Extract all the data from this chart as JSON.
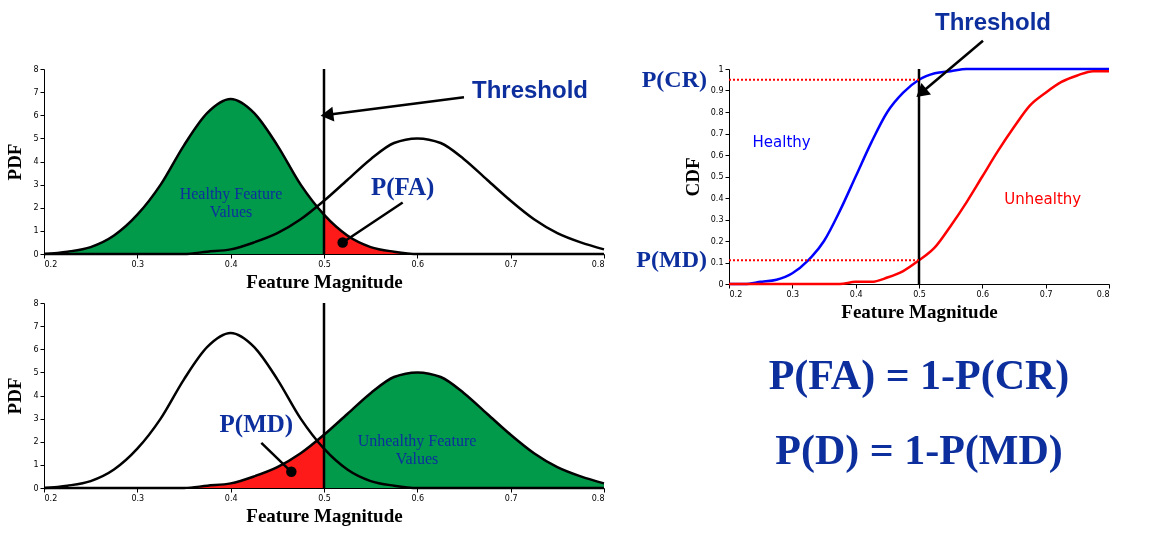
{
  "chart_data": [
    {
      "type": "area",
      "x": [
        0.2,
        0.225,
        0.25,
        0.275,
        0.3,
        0.325,
        0.35,
        0.375,
        0.4,
        0.425,
        0.45,
        0.475,
        0.5,
        0.525,
        0.55,
        0.575,
        0.6,
        0.625,
        0.65,
        0.675,
        0.7,
        0.725,
        0.75,
        0.775,
        0.8
      ],
      "xlim": [
        0.2,
        0.8
      ],
      "xticks": [
        0.2,
        0.3,
        0.4,
        0.5,
        0.6,
        0.7,
        0.8
      ],
      "ylim": [
        0,
        8
      ],
      "yticks": [
        0,
        1,
        2,
        3,
        4,
        5,
        6,
        7,
        8
      ],
      "xlabel": "Feature Magnitude",
      "ylabel": "PDF",
      "series": [
        {
          "type": "area",
          "color": "#009a4a",
          "values": [
            0.0,
            0.1,
            0.3,
            0.8,
            1.7,
            3.0,
            4.7,
            6.1,
            6.7,
            6.1,
            4.7,
            3.0,
            1.7,
            null,
            null,
            null,
            null,
            null,
            null,
            null,
            null,
            null,
            null,
            null,
            null
          ]
        },
        {
          "type": "area",
          "color": "#ff1a1a",
          "values": [
            null,
            null,
            null,
            null,
            null,
            null,
            null,
            null,
            null,
            null,
            null,
            null,
            1.7,
            0.8,
            0.3,
            0.1,
            0.0,
            0.0,
            0.0,
            0.0,
            0.0,
            0.0,
            0.0,
            0.0,
            0.0
          ]
        },
        {
          "type": "line",
          "color": "#000000",
          "values": [
            0.0,
            0.1,
            0.3,
            0.8,
            1.7,
            3.0,
            4.7,
            6.1,
            6.7,
            6.1,
            4.7,
            3.0,
            1.7,
            0.8,
            0.3,
            0.1,
            0.0,
            0.0,
            0.0,
            0.0,
            0.0,
            0.0,
            0.0,
            0.0,
            0.0
          ]
        },
        {
          "type": "line",
          "color": "#000000",
          "values": [
            0.0,
            0.0,
            0.0,
            0.0,
            0.0,
            0.0,
            0.0,
            0.1,
            0.2,
            0.5,
            0.9,
            1.5,
            2.3,
            3.2,
            4.1,
            4.8,
            5.0,
            4.8,
            4.1,
            3.2,
            2.3,
            1.5,
            0.9,
            0.5,
            0.2
          ]
        }
      ],
      "ref_lines": [
        {
          "axis": "x",
          "value": 0.5,
          "color": "#000000"
        }
      ],
      "annotations": [
        "Healthy Feature\nValues",
        {
          "text": "P(FA)",
          "x": 0.52,
          "y": 0.5
        },
        {
          "text": "Threshold",
          "x": 0.5,
          "y": 6
        }
      ]
    },
    {
      "type": "area",
      "x": [
        0.2,
        0.225,
        0.25,
        0.275,
        0.3,
        0.325,
        0.35,
        0.375,
        0.4,
        0.425,
        0.45,
        0.475,
        0.5,
        0.525,
        0.55,
        0.575,
        0.6,
        0.625,
        0.65,
        0.675,
        0.7,
        0.725,
        0.75,
        0.775,
        0.8
      ],
      "xlim": [
        0.2,
        0.8
      ],
      "xticks": [
        0.2,
        0.3,
        0.4,
        0.5,
        0.6,
        0.7,
        0.8
      ],
      "ylim": [
        0,
        8
      ],
      "yticks": [
        0,
        1,
        2,
        3,
        4,
        5,
        6,
        7,
        8
      ],
      "xlabel": "Feature Magnitude",
      "ylabel": "PDF",
      "series": [
        {
          "type": "area",
          "color": "#ff1a1a",
          "values": [
            0.0,
            0.0,
            0.0,
            0.0,
            0.0,
            0.0,
            0.0,
            0.1,
            0.2,
            0.5,
            0.9,
            1.5,
            2.3,
            null,
            null,
            null,
            null,
            null,
            null,
            null,
            null,
            null,
            null,
            null,
            null
          ]
        },
        {
          "type": "area",
          "color": "#009a4a",
          "values": [
            null,
            null,
            null,
            null,
            null,
            null,
            null,
            null,
            null,
            null,
            null,
            null,
            2.3,
            3.2,
            4.1,
            4.8,
            5.0,
            4.8,
            4.1,
            3.2,
            2.3,
            1.5,
            0.9,
            0.5,
            0.2
          ]
        },
        {
          "type": "line",
          "color": "#000000",
          "values": [
            0.0,
            0.1,
            0.3,
            0.8,
            1.7,
            3.0,
            4.7,
            6.1,
            6.7,
            6.1,
            4.7,
            3.0,
            1.7,
            0.8,
            0.3,
            0.1,
            0.0,
            0.0,
            0.0,
            0.0,
            0.0,
            0.0,
            0.0,
            0.0,
            0.0
          ]
        },
        {
          "type": "line",
          "color": "#000000",
          "values": [
            0.0,
            0.0,
            0.0,
            0.0,
            0.0,
            0.0,
            0.0,
            0.1,
            0.2,
            0.5,
            0.9,
            1.5,
            2.3,
            3.2,
            4.1,
            4.8,
            5.0,
            4.8,
            4.1,
            3.2,
            2.3,
            1.5,
            0.9,
            0.5,
            0.2
          ]
        }
      ],
      "ref_lines": [
        {
          "axis": "x",
          "value": 0.5,
          "color": "#000000"
        }
      ],
      "annotations": [
        "Unhealthy Feature\nValues",
        {
          "text": "P(MD)",
          "x": 0.465,
          "y": 0.7
        }
      ]
    },
    {
      "type": "line",
      "x": [
        0.2,
        0.225,
        0.25,
        0.275,
        0.3,
        0.325,
        0.35,
        0.375,
        0.4,
        0.425,
        0.45,
        0.475,
        0.5,
        0.525,
        0.55,
        0.575,
        0.6,
        0.625,
        0.65,
        0.675,
        0.7,
        0.725,
        0.75,
        0.775,
        0.8
      ],
      "xlim": [
        0.2,
        0.8
      ],
      "xticks": [
        0.2,
        0.3,
        0.4,
        0.5,
        0.6,
        0.7,
        0.8
      ],
      "ylim": [
        0,
        1
      ],
      "yticks": [
        0,
        0.1,
        0.2,
        0.3,
        0.4,
        0.5,
        0.6,
        0.7,
        0.8,
        0.9,
        1
      ],
      "xlabel": "Feature Magnitude",
      "ylabel": "CDF",
      "series": [
        {
          "name": "Healthy",
          "color": "#0000ff",
          "values": [
            0.0,
            0.0,
            0.01,
            0.02,
            0.05,
            0.11,
            0.2,
            0.34,
            0.5,
            0.66,
            0.8,
            0.89,
            0.95,
            0.98,
            0.99,
            1.0,
            1.0,
            1.0,
            1.0,
            1.0,
            1.0,
            1.0,
            1.0,
            1.0,
            1.0
          ]
        },
        {
          "name": "Unhealthy",
          "color": "#ff0000",
          "values": [
            0.0,
            0.0,
            0.0,
            0.0,
            0.0,
            0.0,
            0.0,
            0.0,
            0.01,
            0.01,
            0.03,
            0.06,
            0.11,
            0.17,
            0.27,
            0.38,
            0.5,
            0.62,
            0.73,
            0.83,
            0.89,
            0.94,
            0.97,
            0.99,
            0.99
          ]
        }
      ],
      "ref_lines": [
        {
          "axis": "x",
          "value": 0.5,
          "color": "#000000"
        },
        {
          "axis": "y",
          "value": 0.95,
          "label": "P(CR)",
          "color": "#ff0000",
          "line_style": "dotted"
        },
        {
          "axis": "y",
          "value": 0.11,
          "label": "P(MD)",
          "color": "#ff0000",
          "line_style": "dotted"
        }
      ],
      "annotations": [
        {
          "text": "Threshold",
          "x": 0.5,
          "y": 0.88
        }
      ]
    },
    {
      "type": "other",
      "annotations": [
        "P(FA) = 1-P(CR)",
        "P(D) = 1-P(MD)"
      ]
    }
  ]
}
